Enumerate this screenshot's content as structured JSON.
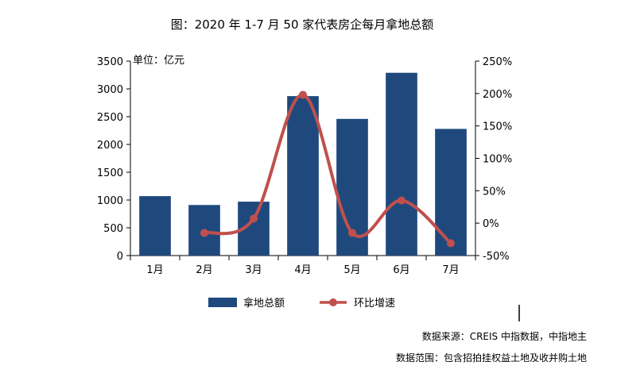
{
  "chart_data": {
    "type": "bar+line",
    "title": "图：2020 年 1-7 月 50 家代表房企每月拿地总额",
    "unit_label": "单位：亿元",
    "categories": [
      "1月",
      "2月",
      "3月",
      "4月",
      "5月",
      "6月",
      "7月"
    ],
    "series": [
      {
        "name": "拿地总额",
        "type": "bar",
        "axis": "left",
        "color": "#1F497D",
        "values": [
          1070,
          910,
          970,
          2870,
          2460,
          3290,
          2280
        ]
      },
      {
        "name": "环比增速",
        "type": "line",
        "axis": "right",
        "color": "#C0504D",
        "values": [
          null,
          -15,
          7,
          198,
          -15,
          35,
          -31
        ]
      }
    ],
    "y_left": {
      "min": 0,
      "max": 3500,
      "ticks": [
        "0",
        "500",
        "1000",
        "1500",
        "2000",
        "2500",
        "3000",
        "3500"
      ]
    },
    "y_right": {
      "min": -50,
      "max": 250,
      "ticks": [
        "-50%",
        "0%",
        "50%",
        "100%",
        "150%",
        "200%",
        "250%"
      ]
    },
    "legend": {
      "placement": "bottom",
      "items": [
        "拿地总额",
        "环比增速"
      ]
    },
    "notes": [
      "数据来源：CREIS 中指数据，中指地主",
      "数据范围：包含招拍挂权益土地及收并购土地"
    ]
  }
}
